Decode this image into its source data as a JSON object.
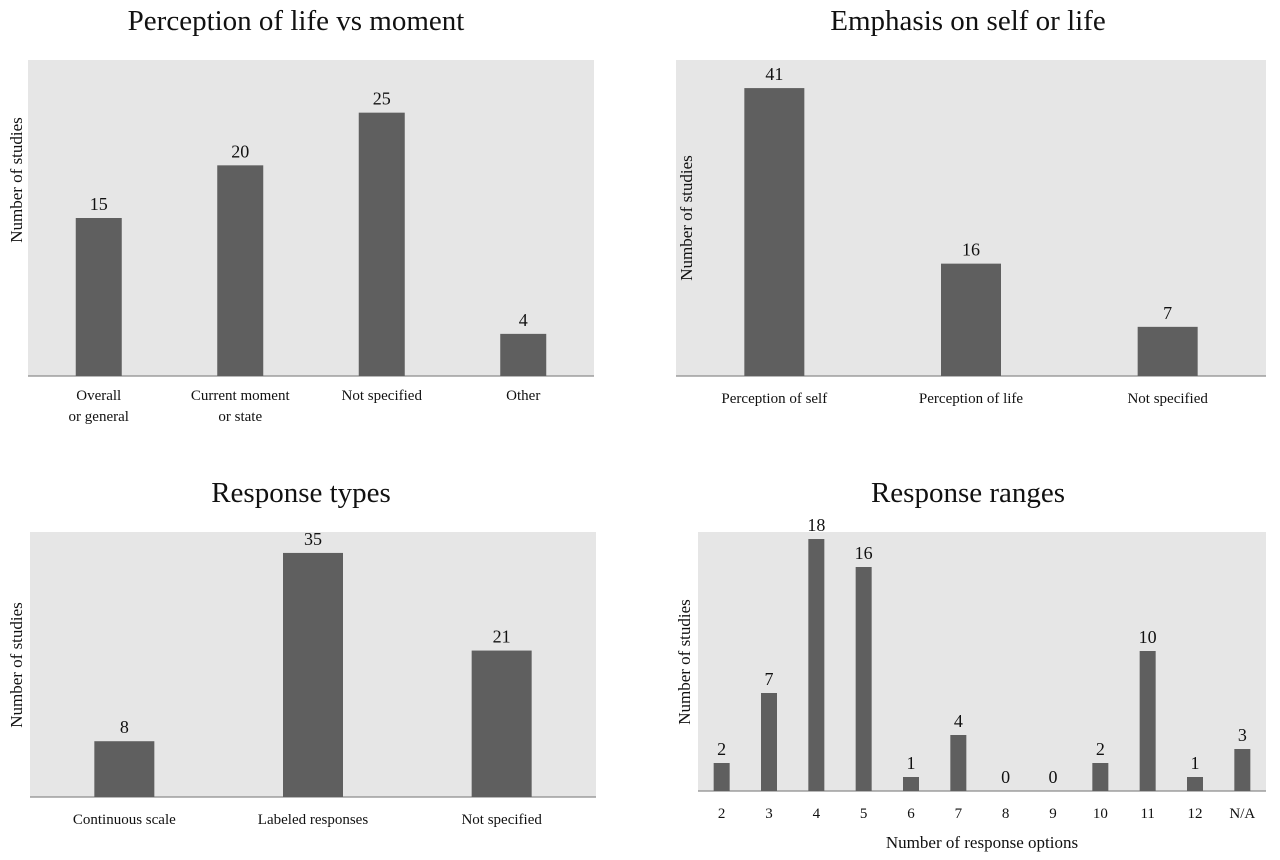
{
  "chart_data": [
    {
      "type": "bar",
      "title": "Perception of life vs moment",
      "xlabel": "",
      "ylabel": "Number of studies",
      "categories": [
        [
          "Overall",
          "or general"
        ],
        [
          "Current moment",
          "or state"
        ],
        [
          "Not specified"
        ],
        [
          "Other"
        ]
      ],
      "values": [
        15,
        20,
        25,
        4
      ],
      "ylim": [
        0,
        30
      ],
      "grid": false,
      "bar_color": "#5f5f5f",
      "background": "#e6e6e6"
    },
    {
      "type": "bar",
      "title": "Emphasis on self or life",
      "xlabel": "",
      "ylabel": "Number of studies",
      "categories": [
        [
          "Perception of self"
        ],
        [
          "Perception of life"
        ],
        [
          "Not specified"
        ]
      ],
      "values": [
        41,
        16,
        7
      ],
      "ylim": [
        0,
        45
      ],
      "grid": false,
      "bar_color": "#5f5f5f",
      "background": "#e6e6e6"
    },
    {
      "type": "bar",
      "title": "Response types",
      "xlabel": "",
      "ylabel": "Number of studies",
      "categories": [
        [
          "Continuous scale"
        ],
        [
          "Labeled responses"
        ],
        [
          "Not specified"
        ]
      ],
      "values": [
        8,
        35,
        21
      ],
      "ylim": [
        0,
        38
      ],
      "grid": false,
      "bar_color": "#5f5f5f",
      "background": "#e6e6e6"
    },
    {
      "type": "bar",
      "title": "Response ranges",
      "xlabel": "Number of response options",
      "ylabel": "Number of studies",
      "categories": [
        [
          "2"
        ],
        [
          "3"
        ],
        [
          "4"
        ],
        [
          "5"
        ],
        [
          "6"
        ],
        [
          "7"
        ],
        [
          "8"
        ],
        [
          "9"
        ],
        [
          "10"
        ],
        [
          "11"
        ],
        [
          "12"
        ],
        [
          "N/A"
        ]
      ],
      "values": [
        2,
        7,
        18,
        16,
        1,
        4,
        0,
        0,
        2,
        10,
        1,
        3
      ],
      "ylim": [
        0,
        18.5
      ],
      "grid": false,
      "bar_color": "#5f5f5f",
      "background": "#e6e6e6"
    }
  ]
}
